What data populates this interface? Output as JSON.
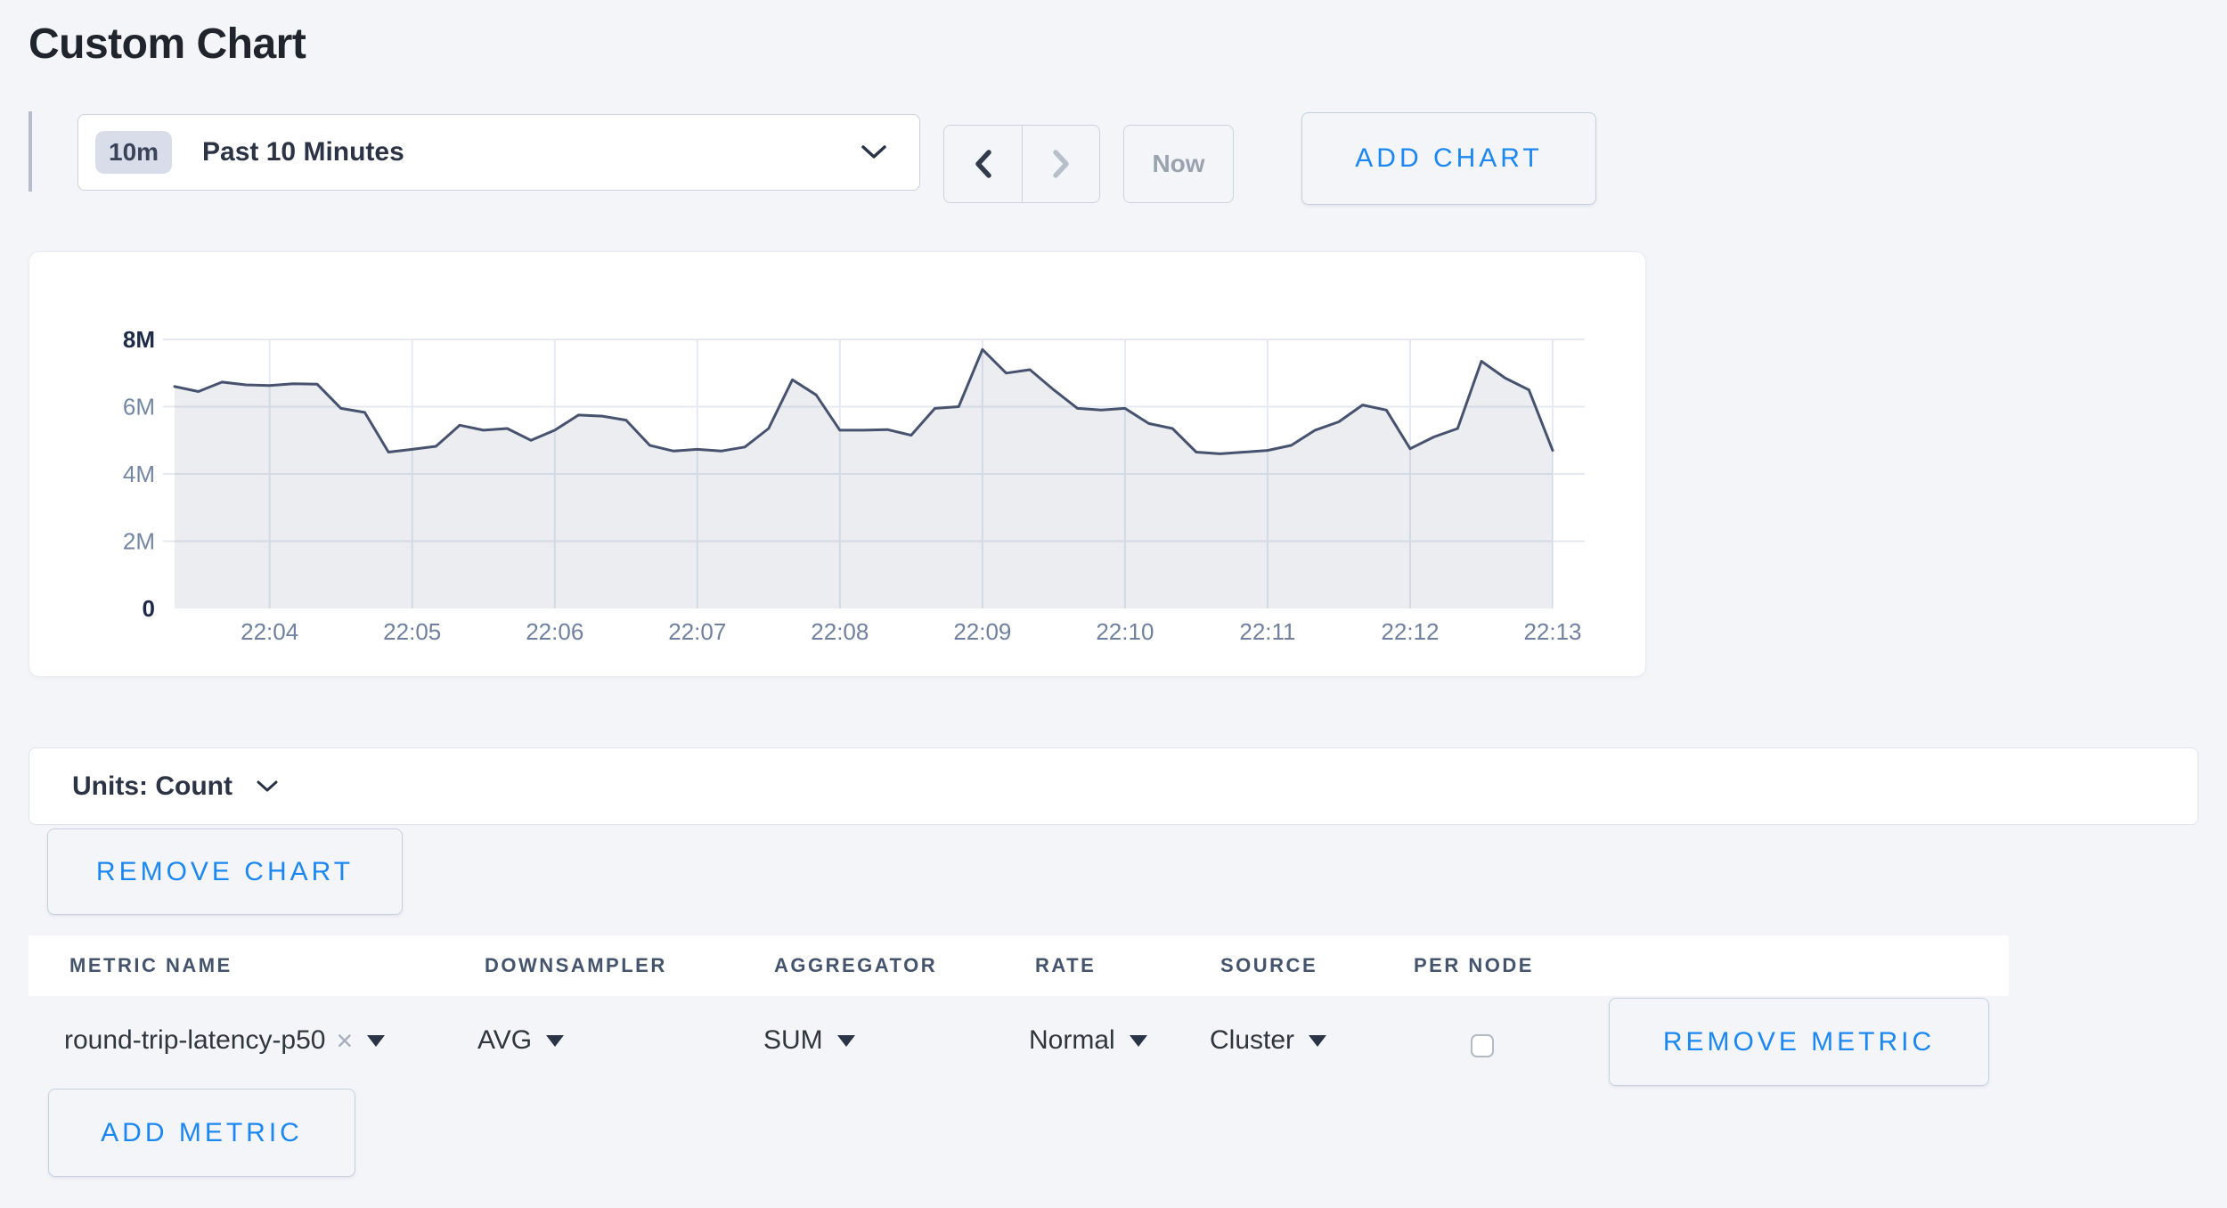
{
  "page": {
    "title": "Custom Chart",
    "background_color": "#f3f5f9"
  },
  "toolbar": {
    "range_badge": "10m",
    "range_label": "Past 10 Minutes",
    "now_label": "Now",
    "add_chart_label": "ADD CHART",
    "back_enabled": true,
    "forward_enabled": false
  },
  "chart_data": {
    "type": "area",
    "title": "",
    "xlabel": "",
    "ylabel": "Count",
    "x_tick_labels": [
      "22:04",
      "22:05",
      "22:06",
      "22:07",
      "22:08",
      "22:09",
      "22:10",
      "22:11",
      "22:12",
      "22:13"
    ],
    "y_tick_labels": [
      "0",
      "2M",
      "4M",
      "6M",
      "8M"
    ],
    "ylim_millions": [
      0,
      8
    ],
    "grid": true,
    "legend": "none",
    "series": [
      {
        "name": "round-trip-latency-p50",
        "x_start": "22:03:20",
        "x_step_seconds": 10,
        "values_millions": [
          6.6,
          6.45,
          6.73,
          6.65,
          6.63,
          6.68,
          6.67,
          5.95,
          5.83,
          4.65,
          4.73,
          4.82,
          5.45,
          5.3,
          5.35,
          5.0,
          5.3,
          5.75,
          5.72,
          5.6,
          4.85,
          4.68,
          4.73,
          4.68,
          4.8,
          5.35,
          6.8,
          6.35,
          5.3,
          5.3,
          5.32,
          5.15,
          5.95,
          6.0,
          7.7,
          7.0,
          7.1,
          6.5,
          5.95,
          5.9,
          5.95,
          5.5,
          5.35,
          4.65,
          4.6,
          4.65,
          4.7,
          4.85,
          5.3,
          5.55,
          6.05,
          5.9,
          4.75,
          5.1,
          5.35,
          7.35,
          6.85,
          6.5,
          4.7
        ]
      }
    ],
    "line_color": "#47536e",
    "fill_color": "rgba(71,83,110,0.10)",
    "gridline_color": "#e5e9f1"
  },
  "units_bar": {
    "label": "Units: Count"
  },
  "remove_chart_label": "REMOVE CHART",
  "metrics_table": {
    "columns": [
      "METRIC NAME",
      "DOWNSAMPLER",
      "AGGREGATOR",
      "RATE",
      "SOURCE",
      "PER NODE"
    ],
    "rows": [
      {
        "metric_name": "round-trip-latency-p50",
        "downsampler": "AVG",
        "aggregator": "SUM",
        "rate": "Normal",
        "source": "Cluster",
        "per_node": false,
        "remove_label": "REMOVE METRIC"
      }
    ],
    "add_metric_label": "ADD METRIC"
  },
  "icons": {
    "clear": "×"
  },
  "colors": {
    "accent_blue": "#1b87f2",
    "dark_text": "#2b3345",
    "header_text": "#45546d",
    "line": "#47536e",
    "page_bg": "#f3f5f9"
  }
}
